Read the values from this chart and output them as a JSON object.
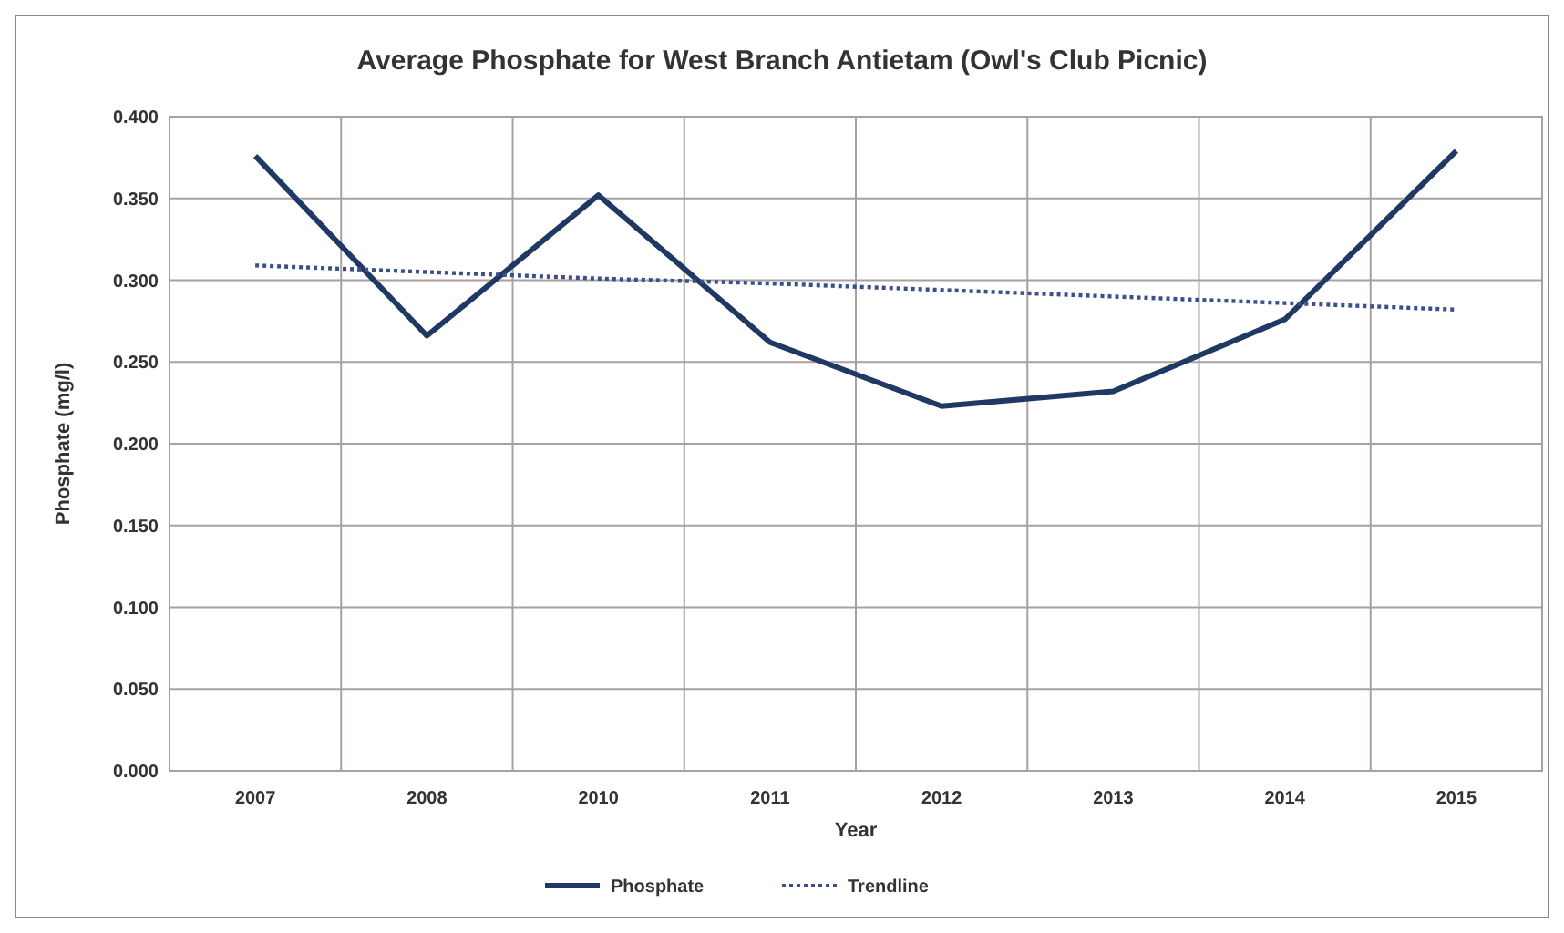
{
  "chart_data": {
    "type": "line",
    "title": "Average Phosphate for West Branch Antietam (Owl's Club Picnic)",
    "xlabel": "Year",
    "ylabel": "Phosphate (mg/l)",
    "categories": [
      "2007",
      "2008",
      "2010",
      "2011",
      "2012",
      "2013",
      "2014",
      "2015"
    ],
    "series": [
      {
        "name": "Phosphate",
        "color": "#203864",
        "line_style": "solid",
        "values": [
          0.376,
          0.266,
          0.352,
          0.262,
          0.223,
          0.232,
          0.276,
          0.379
        ]
      },
      {
        "name": "Trendline",
        "color": "#3b4f8a",
        "line_style": "dotted",
        "values": [
          0.309,
          0.305,
          0.301,
          0.298,
          0.294,
          0.29,
          0.286,
          0.282
        ]
      }
    ],
    "ylim": [
      0,
      0.4
    ],
    "yticks": [
      {
        "value": 0,
        "label": "0.000"
      },
      {
        "value": 0.05,
        "label": "0.050"
      },
      {
        "value": 0.1,
        "label": "0.100"
      },
      {
        "value": 0.15,
        "label": "0.150"
      },
      {
        "value": 0.2,
        "label": "0.200"
      },
      {
        "value": 0.25,
        "label": "0.250"
      },
      {
        "value": 0.3,
        "label": "0.300"
      },
      {
        "value": 0.35,
        "label": "0.350"
      },
      {
        "value": 0.4,
        "label": "0.400"
      }
    ],
    "grid": true,
    "legend": "bottom",
    "marker": "none"
  }
}
